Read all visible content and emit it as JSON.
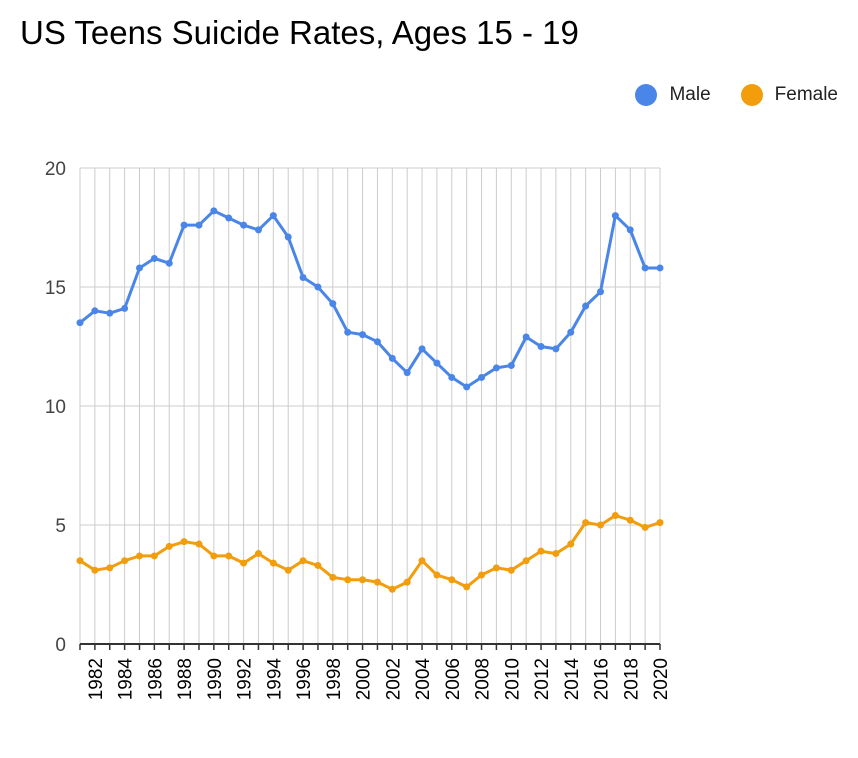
{
  "chart_data": {
    "type": "line",
    "title": "US Teens Suicide Rates, Ages 15 - 19",
    "xlabel": "",
    "ylabel": "",
    "ylim": [
      0,
      20
    ],
    "yticks": [
      0,
      5,
      10,
      15,
      20
    ],
    "grid": true,
    "legend_position": "top-right",
    "x": [
      1981,
      1982,
      1983,
      1984,
      1985,
      1986,
      1987,
      1988,
      1989,
      1990,
      1991,
      1992,
      1993,
      1994,
      1995,
      1996,
      1997,
      1998,
      1999,
      2000,
      2001,
      2002,
      2003,
      2004,
      2005,
      2006,
      2007,
      2008,
      2009,
      2010,
      2011,
      2012,
      2013,
      2014,
      2015,
      2016,
      2017,
      2018,
      2019,
      2020
    ],
    "xtick_labels": [
      "1982",
      "1984",
      "1986",
      "1988",
      "1990",
      "1992",
      "1994",
      "1996",
      "1998",
      "2000",
      "2002",
      "2004",
      "2006",
      "2008",
      "2010",
      "2012",
      "2014",
      "2016",
      "2018",
      "2020"
    ],
    "series": [
      {
        "name": "Male",
        "color": "#4a86e8",
        "values": [
          13.5,
          14.0,
          13.9,
          14.1,
          15.8,
          16.2,
          16.0,
          17.6,
          17.6,
          18.2,
          17.9,
          17.6,
          17.4,
          18.0,
          17.1,
          15.4,
          15.0,
          14.3,
          13.1,
          13.0,
          12.7,
          12.0,
          11.4,
          12.4,
          11.8,
          11.2,
          10.8,
          11.2,
          11.6,
          11.7,
          12.9,
          12.5,
          12.4,
          13.1,
          14.2,
          14.8,
          18.0,
          17.4,
          15.8,
          15.8
        ]
      },
      {
        "name": "Female",
        "color": "#f29d0c",
        "values": [
          3.5,
          3.1,
          3.2,
          3.5,
          3.7,
          3.7,
          4.1,
          4.3,
          4.2,
          3.7,
          3.7,
          3.4,
          3.8,
          3.4,
          3.1,
          3.5,
          3.3,
          2.8,
          2.7,
          2.7,
          2.6,
          2.3,
          2.6,
          3.5,
          2.9,
          2.7,
          2.4,
          2.9,
          3.2,
          3.1,
          3.5,
          3.9,
          3.8,
          4.2,
          5.1,
          5.0,
          5.4,
          5.2,
          4.9,
          5.1
        ]
      }
    ]
  }
}
